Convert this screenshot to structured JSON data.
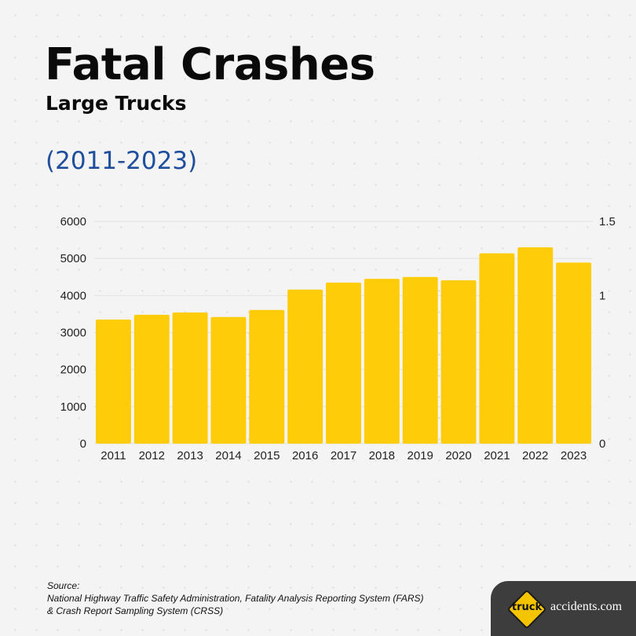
{
  "header": {
    "title": "Fatal Crashes",
    "subtitle": "Large Trucks",
    "range": "(2011-2023)"
  },
  "chart_data": {
    "type": "bar",
    "categories": [
      "2011",
      "2012",
      "2013",
      "2014",
      "2015",
      "2016",
      "2017",
      "2018",
      "2019",
      "2020",
      "2021",
      "2022",
      "2023"
    ],
    "values": [
      3350,
      3480,
      3540,
      3420,
      3610,
      4160,
      4350,
      4450,
      4500,
      4410,
      5140,
      5300,
      4890
    ],
    "ylim": [
      0,
      6000
    ],
    "yticks": [
      "0",
      "1000",
      "2000",
      "3000",
      "4000",
      "5000",
      "6000"
    ],
    "y2lim": [
      0,
      1.5
    ],
    "y2ticks": [
      "0",
      "1",
      "1.5"
    ],
    "grid": true,
    "bar_color": "#FFCC0A"
  },
  "footer": {
    "source_label": "Source:",
    "source_line1": "National Highway Traffic Safety Administration, Fatality Analysis Reporting System (FARS)",
    "source_line2": "& Crash Report Sampling System (CRSS)"
  },
  "logo": {
    "mark_text": "truck",
    "text": "accidents.com",
    "icon": "road-sign-diamond-icon"
  }
}
